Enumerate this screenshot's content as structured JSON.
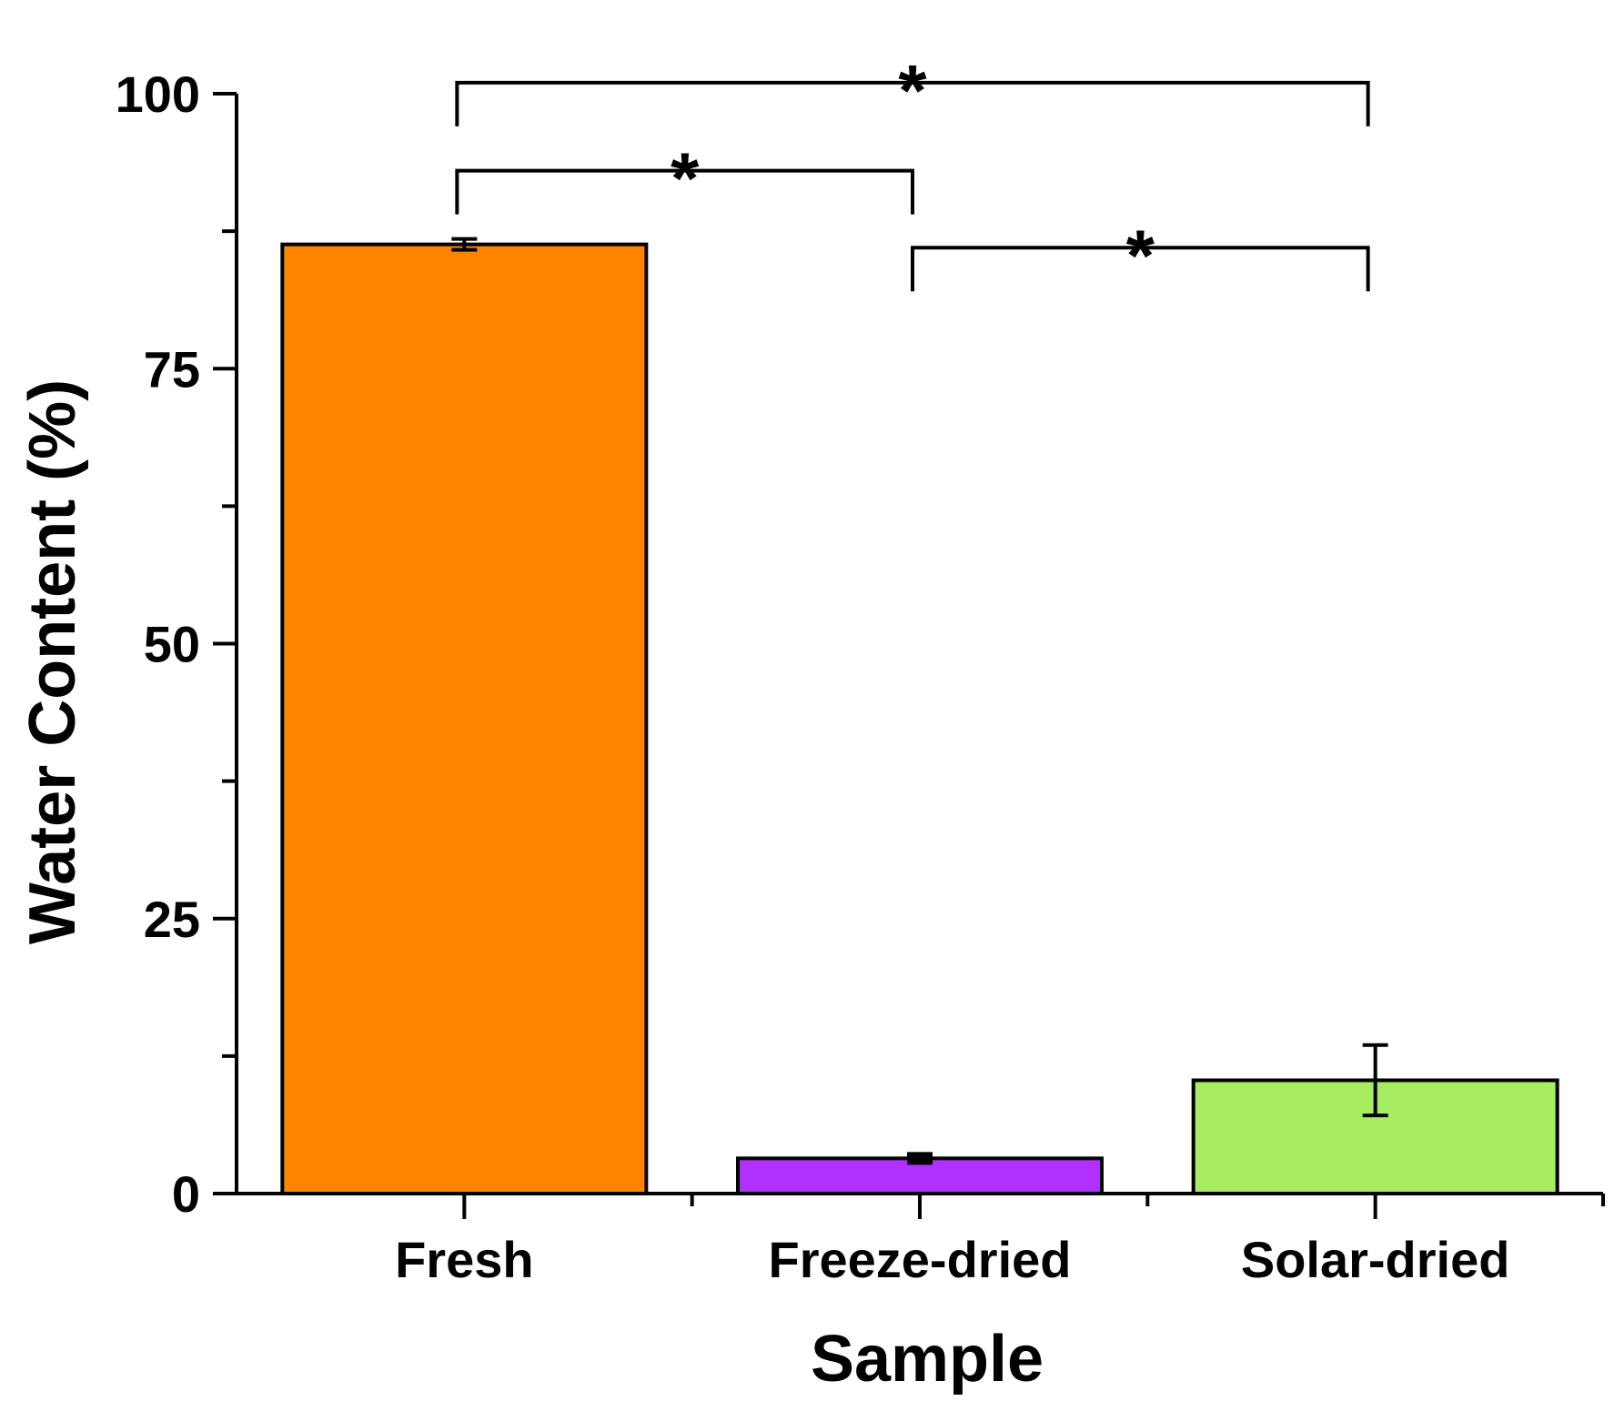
{
  "chart_data": {
    "type": "bar",
    "title": "",
    "xlabel": "Sample",
    "ylabel": "Water Content (%)",
    "ylim": [
      0,
      100
    ],
    "y_ticks": [
      0,
      25,
      50,
      75,
      100
    ],
    "y_minor_ticks": [
      12.5,
      37.5,
      62.5,
      87.5
    ],
    "categories": [
      "Fresh",
      "Freeze-dried",
      "Solar-dried"
    ],
    "values": [
      86.3,
      3.2,
      10.3
    ],
    "errors": [
      0.5,
      0.4,
      3.2
    ],
    "colors": [
      "#FF8500",
      "#B030FF",
      "#A6EE60"
    ],
    "significance": [
      {
        "from": 0,
        "to": 1,
        "label": "*",
        "level": 93
      },
      {
        "from": 0,
        "to": 2,
        "label": "*",
        "level": 101
      },
      {
        "from": 1,
        "to": 2,
        "label": "*",
        "level": 86
      }
    ]
  }
}
